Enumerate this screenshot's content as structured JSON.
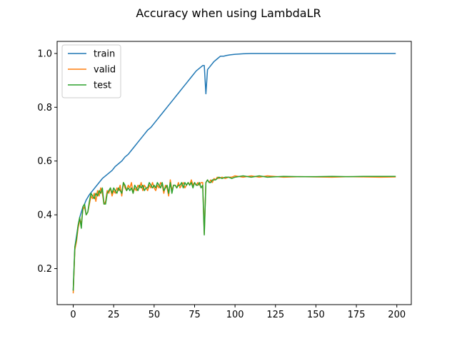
{
  "chart_data": {
    "type": "line",
    "title": "Accuracy when using LambdaLR",
    "xlabel": "",
    "ylabel": "",
    "xlim": [
      -9.95,
      208.95
    ],
    "ylim": [
      0.066,
      1.045
    ],
    "xticks": [
      0,
      25,
      50,
      75,
      100,
      125,
      150,
      175,
      200
    ],
    "yticks": [
      0.2,
      0.4,
      0.6,
      0.8,
      1.0
    ],
    "ytick_labels": [
      "0.2",
      "0.4",
      "0.6",
      "0.8",
      "1.0"
    ],
    "grid": false,
    "legend_position": "upper left",
    "colors": {
      "train": "#1f77b4",
      "valid": "#ff7f0e",
      "test": "#2ca02c"
    },
    "series": [
      {
        "name": "train",
        "color": "#1f77b4",
        "points": [
          [
            0,
            0.12
          ],
          [
            1,
            0.28
          ],
          [
            2,
            0.32
          ],
          [
            3,
            0.36
          ],
          [
            4,
            0.39
          ],
          [
            5,
            0.41
          ],
          [
            6,
            0.43
          ],
          [
            7,
            0.44
          ],
          [
            8,
            0.455
          ],
          [
            9,
            0.465
          ],
          [
            10,
            0.475
          ],
          [
            12,
            0.49
          ],
          [
            14,
            0.505
          ],
          [
            16,
            0.52
          ],
          [
            18,
            0.535
          ],
          [
            20,
            0.545
          ],
          [
            22,
            0.555
          ],
          [
            24,
            0.565
          ],
          [
            26,
            0.58
          ],
          [
            28,
            0.59
          ],
          [
            30,
            0.6
          ],
          [
            32,
            0.615
          ],
          [
            34,
            0.625
          ],
          [
            36,
            0.64
          ],
          [
            38,
            0.655
          ],
          [
            40,
            0.67
          ],
          [
            42,
            0.685
          ],
          [
            44,
            0.7
          ],
          [
            46,
            0.715
          ],
          [
            48,
            0.725
          ],
          [
            50,
            0.74
          ],
          [
            52,
            0.755
          ],
          [
            54,
            0.77
          ],
          [
            56,
            0.785
          ],
          [
            58,
            0.8
          ],
          [
            60,
            0.815
          ],
          [
            62,
            0.83
          ],
          [
            64,
            0.845
          ],
          [
            66,
            0.86
          ],
          [
            68,
            0.875
          ],
          [
            70,
            0.89
          ],
          [
            72,
            0.905
          ],
          [
            74,
            0.92
          ],
          [
            76,
            0.935
          ],
          [
            78,
            0.945
          ],
          [
            80,
            0.955
          ],
          [
            81,
            0.955
          ],
          [
            82,
            0.85
          ],
          [
            83,
            0.94
          ],
          [
            85,
            0.955
          ],
          [
            87,
            0.97
          ],
          [
            89,
            0.98
          ],
          [
            91,
            0.99
          ],
          [
            93,
            0.99
          ],
          [
            95,
            0.993
          ],
          [
            97,
            0.995
          ],
          [
            100,
            0.997
          ],
          [
            105,
            0.999
          ],
          [
            110,
            1.0
          ],
          [
            120,
            1.0
          ],
          [
            199,
            1.0
          ]
        ]
      },
      {
        "name": "valid",
        "color": "#ff7f0e",
        "points": [
          [
            0,
            0.11
          ],
          [
            1,
            0.27
          ],
          [
            2,
            0.3
          ],
          [
            3,
            0.35
          ],
          [
            4,
            0.38
          ],
          [
            5,
            0.37
          ],
          [
            6,
            0.42
          ],
          [
            7,
            0.43
          ],
          [
            8,
            0.4
          ],
          [
            9,
            0.41
          ],
          [
            10,
            0.44
          ],
          [
            11,
            0.47
          ],
          [
            12,
            0.46
          ],
          [
            13,
            0.48
          ],
          [
            14,
            0.45
          ],
          [
            15,
            0.49
          ],
          [
            16,
            0.47
          ],
          [
            17,
            0.5
          ],
          [
            18,
            0.48
          ],
          [
            19,
            0.44
          ],
          [
            20,
            0.45
          ],
          [
            21,
            0.49
          ],
          [
            22,
            0.48
          ],
          [
            23,
            0.5
          ],
          [
            24,
            0.47
          ],
          [
            25,
            0.49
          ],
          [
            26,
            0.48
          ],
          [
            27,
            0.5
          ],
          [
            28,
            0.49
          ],
          [
            29,
            0.51
          ],
          [
            30,
            0.47
          ],
          [
            31,
            0.52
          ],
          [
            32,
            0.5
          ],
          [
            33,
            0.49
          ],
          [
            34,
            0.51
          ],
          [
            35,
            0.5
          ],
          [
            36,
            0.52
          ],
          [
            37,
            0.48
          ],
          [
            38,
            0.5
          ],
          [
            39,
            0.49
          ],
          [
            40,
            0.51
          ],
          [
            41,
            0.5
          ],
          [
            42,
            0.52
          ],
          [
            43,
            0.49
          ],
          [
            44,
            0.51
          ],
          [
            45,
            0.5
          ],
          [
            46,
            0.49
          ],
          [
            47,
            0.51
          ],
          [
            48,
            0.5
          ],
          [
            49,
            0.52
          ],
          [
            50,
            0.5
          ],
          [
            51,
            0.49
          ],
          [
            52,
            0.51
          ],
          [
            53,
            0.5
          ],
          [
            54,
            0.52
          ],
          [
            55,
            0.51
          ],
          [
            56,
            0.48
          ],
          [
            57,
            0.51
          ],
          [
            58,
            0.5
          ],
          [
            59,
            0.47
          ],
          [
            60,
            0.53
          ],
          [
            61,
            0.49
          ],
          [
            62,
            0.51
          ],
          [
            63,
            0.51
          ],
          [
            64,
            0.5
          ],
          [
            65,
            0.52
          ],
          [
            66,
            0.5
          ],
          [
            67,
            0.51
          ],
          [
            68,
            0.52
          ],
          [
            69,
            0.5
          ],
          [
            70,
            0.51
          ],
          [
            71,
            0.52
          ],
          [
            72,
            0.51
          ],
          [
            73,
            0.53
          ],
          [
            74,
            0.51
          ],
          [
            75,
            0.52
          ],
          [
            76,
            0.51
          ],
          [
            77,
            0.52
          ],
          [
            78,
            0.51
          ],
          [
            79,
            0.52
          ],
          [
            80,
            0.52
          ],
          [
            81,
            0.33
          ],
          [
            82,
            0.52
          ],
          [
            83,
            0.53
          ],
          [
            84,
            0.52
          ],
          [
            85,
            0.53
          ],
          [
            86,
            0.52
          ],
          [
            87,
            0.535
          ],
          [
            88,
            0.53
          ],
          [
            89,
            0.54
          ],
          [
            90,
            0.535
          ],
          [
            92,
            0.54
          ],
          [
            94,
            0.535
          ],
          [
            96,
            0.54
          ],
          [
            98,
            0.54
          ],
          [
            100,
            0.545
          ],
          [
            105,
            0.54
          ],
          [
            110,
            0.545
          ],
          [
            115,
            0.54
          ],
          [
            120,
            0.545
          ],
          [
            130,
            0.54
          ],
          [
            140,
            0.542
          ],
          [
            150,
            0.541
          ],
          [
            160,
            0.54
          ],
          [
            170,
            0.542
          ],
          [
            180,
            0.541
          ],
          [
            190,
            0.54
          ],
          [
            199,
            0.541
          ]
        ]
      },
      {
        "name": "test",
        "color": "#2ca02c",
        "points": [
          [
            0,
            0.12
          ],
          [
            1,
            0.28
          ],
          [
            2,
            0.31
          ],
          [
            3,
            0.36
          ],
          [
            4,
            0.39
          ],
          [
            5,
            0.35
          ],
          [
            6,
            0.43
          ],
          [
            7,
            0.44
          ],
          [
            8,
            0.4
          ],
          [
            9,
            0.41
          ],
          [
            10,
            0.45
          ],
          [
            11,
            0.48
          ],
          [
            12,
            0.47
          ],
          [
            13,
            0.46
          ],
          [
            14,
            0.48
          ],
          [
            15,
            0.47
          ],
          [
            16,
            0.49
          ],
          [
            17,
            0.48
          ],
          [
            18,
            0.5
          ],
          [
            19,
            0.44
          ],
          [
            20,
            0.44
          ],
          [
            21,
            0.48
          ],
          [
            22,
            0.49
          ],
          [
            23,
            0.5
          ],
          [
            24,
            0.48
          ],
          [
            25,
            0.5
          ],
          [
            26,
            0.49
          ],
          [
            27,
            0.48
          ],
          [
            28,
            0.5
          ],
          [
            29,
            0.49
          ],
          [
            30,
            0.48
          ],
          [
            31,
            0.52
          ],
          [
            32,
            0.51
          ],
          [
            33,
            0.49
          ],
          [
            34,
            0.5
          ],
          [
            35,
            0.49
          ],
          [
            36,
            0.5
          ],
          [
            37,
            0.48
          ],
          [
            38,
            0.51
          ],
          [
            39,
            0.5
          ],
          [
            40,
            0.49
          ],
          [
            41,
            0.51
          ],
          [
            42,
            0.5
          ],
          [
            43,
            0.51
          ],
          [
            44,
            0.49
          ],
          [
            45,
            0.5
          ],
          [
            46,
            0.5
          ],
          [
            47,
            0.52
          ],
          [
            48,
            0.51
          ],
          [
            49,
            0.5
          ],
          [
            50,
            0.51
          ],
          [
            51,
            0.5
          ],
          [
            52,
            0.52
          ],
          [
            53,
            0.51
          ],
          [
            54,
            0.5
          ],
          [
            55,
            0.52
          ],
          [
            56,
            0.49
          ],
          [
            57,
            0.5
          ],
          [
            58,
            0.51
          ],
          [
            59,
            0.48
          ],
          [
            60,
            0.52
          ],
          [
            61,
            0.48
          ],
          [
            62,
            0.51
          ],
          [
            63,
            0.51
          ],
          [
            64,
            0.5
          ],
          [
            65,
            0.51
          ],
          [
            66,
            0.51
          ],
          [
            67,
            0.52
          ],
          [
            68,
            0.5
          ],
          [
            69,
            0.52
          ],
          [
            70,
            0.51
          ],
          [
            71,
            0.52
          ],
          [
            72,
            0.51
          ],
          [
            73,
            0.52
          ],
          [
            74,
            0.5
          ],
          [
            75,
            0.52
          ],
          [
            76,
            0.51
          ],
          [
            77,
            0.51
          ],
          [
            78,
            0.52
          ],
          [
            79,
            0.5
          ],
          [
            80,
            0.51
          ],
          [
            81,
            0.325
          ],
          [
            82,
            0.52
          ],
          [
            83,
            0.53
          ],
          [
            84,
            0.52
          ],
          [
            85,
            0.52
          ],
          [
            86,
            0.53
          ],
          [
            87,
            0.53
          ],
          [
            88,
            0.53
          ],
          [
            89,
            0.535
          ],
          [
            90,
            0.54
          ],
          [
            92,
            0.535
          ],
          [
            94,
            0.54
          ],
          [
            96,
            0.54
          ],
          [
            98,
            0.535
          ],
          [
            100,
            0.54
          ],
          [
            105,
            0.545
          ],
          [
            110,
            0.54
          ],
          [
            115,
            0.545
          ],
          [
            120,
            0.54
          ],
          [
            130,
            0.543
          ],
          [
            140,
            0.542
          ],
          [
            150,
            0.542
          ],
          [
            160,
            0.543
          ],
          [
            170,
            0.542
          ],
          [
            180,
            0.543
          ],
          [
            190,
            0.543
          ],
          [
            199,
            0.543
          ]
        ]
      }
    ]
  }
}
